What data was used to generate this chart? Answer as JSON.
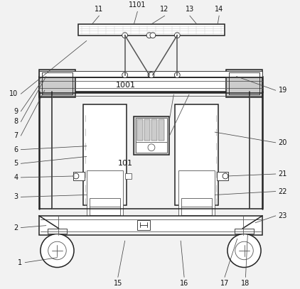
{
  "bg_color": "#f2f2f2",
  "lc": "#555555",
  "dc": "#222222",
  "lg": "#cccccc",
  "mg": "#999999",
  "white": "#ffffff",
  "annot_fs": 7.0,
  "annot_color": "#111111"
}
